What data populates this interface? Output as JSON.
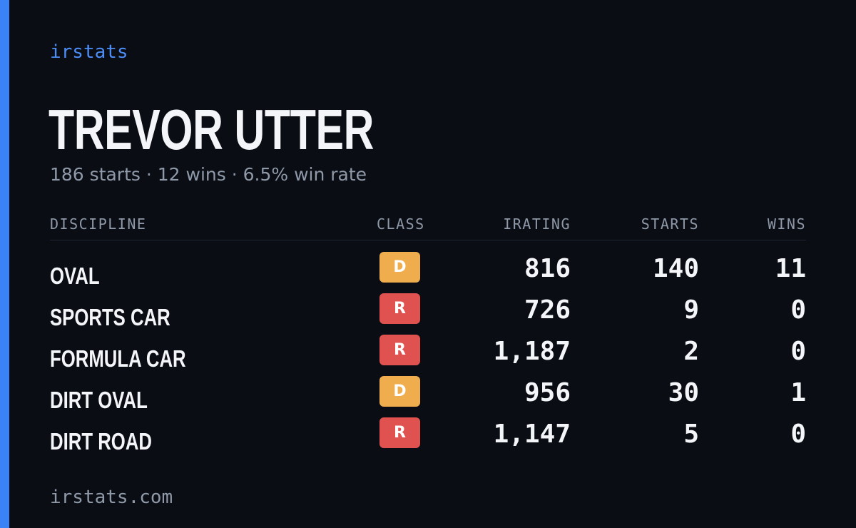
{
  "brand": "irstats",
  "driver": {
    "name": "TREVOR UTTER",
    "summary": "186 starts · 12 wins · 6.5% win rate"
  },
  "table": {
    "headers": {
      "discipline": "DISCIPLINE",
      "class": "CLASS",
      "irating": "IRATING",
      "starts": "STARTS",
      "wins": "WINS"
    },
    "rows": [
      {
        "discipline": "OVAL",
        "class": "D",
        "class_color": "#f0ad4e",
        "irating": "816",
        "starts": "140",
        "wins": "11"
      },
      {
        "discipline": "SPORTS CAR",
        "class": "R",
        "class_color": "#e0524f",
        "irating": "726",
        "starts": "9",
        "wins": "0"
      },
      {
        "discipline": "FORMULA CAR",
        "class": "R",
        "class_color": "#e0524f",
        "irating": "1,187",
        "starts": "2",
        "wins": "0"
      },
      {
        "discipline": "DIRT OVAL",
        "class": "D",
        "class_color": "#f0ad4e",
        "irating": "956",
        "starts": "30",
        "wins": "1"
      },
      {
        "discipline": "DIRT ROAD",
        "class": "R",
        "class_color": "#e0524f",
        "irating": "1,147",
        "starts": "5",
        "wins": "0"
      }
    ]
  },
  "footer": "irstats.com",
  "colors": {
    "accent": "#3b82f6",
    "background": "#0a0d14"
  }
}
